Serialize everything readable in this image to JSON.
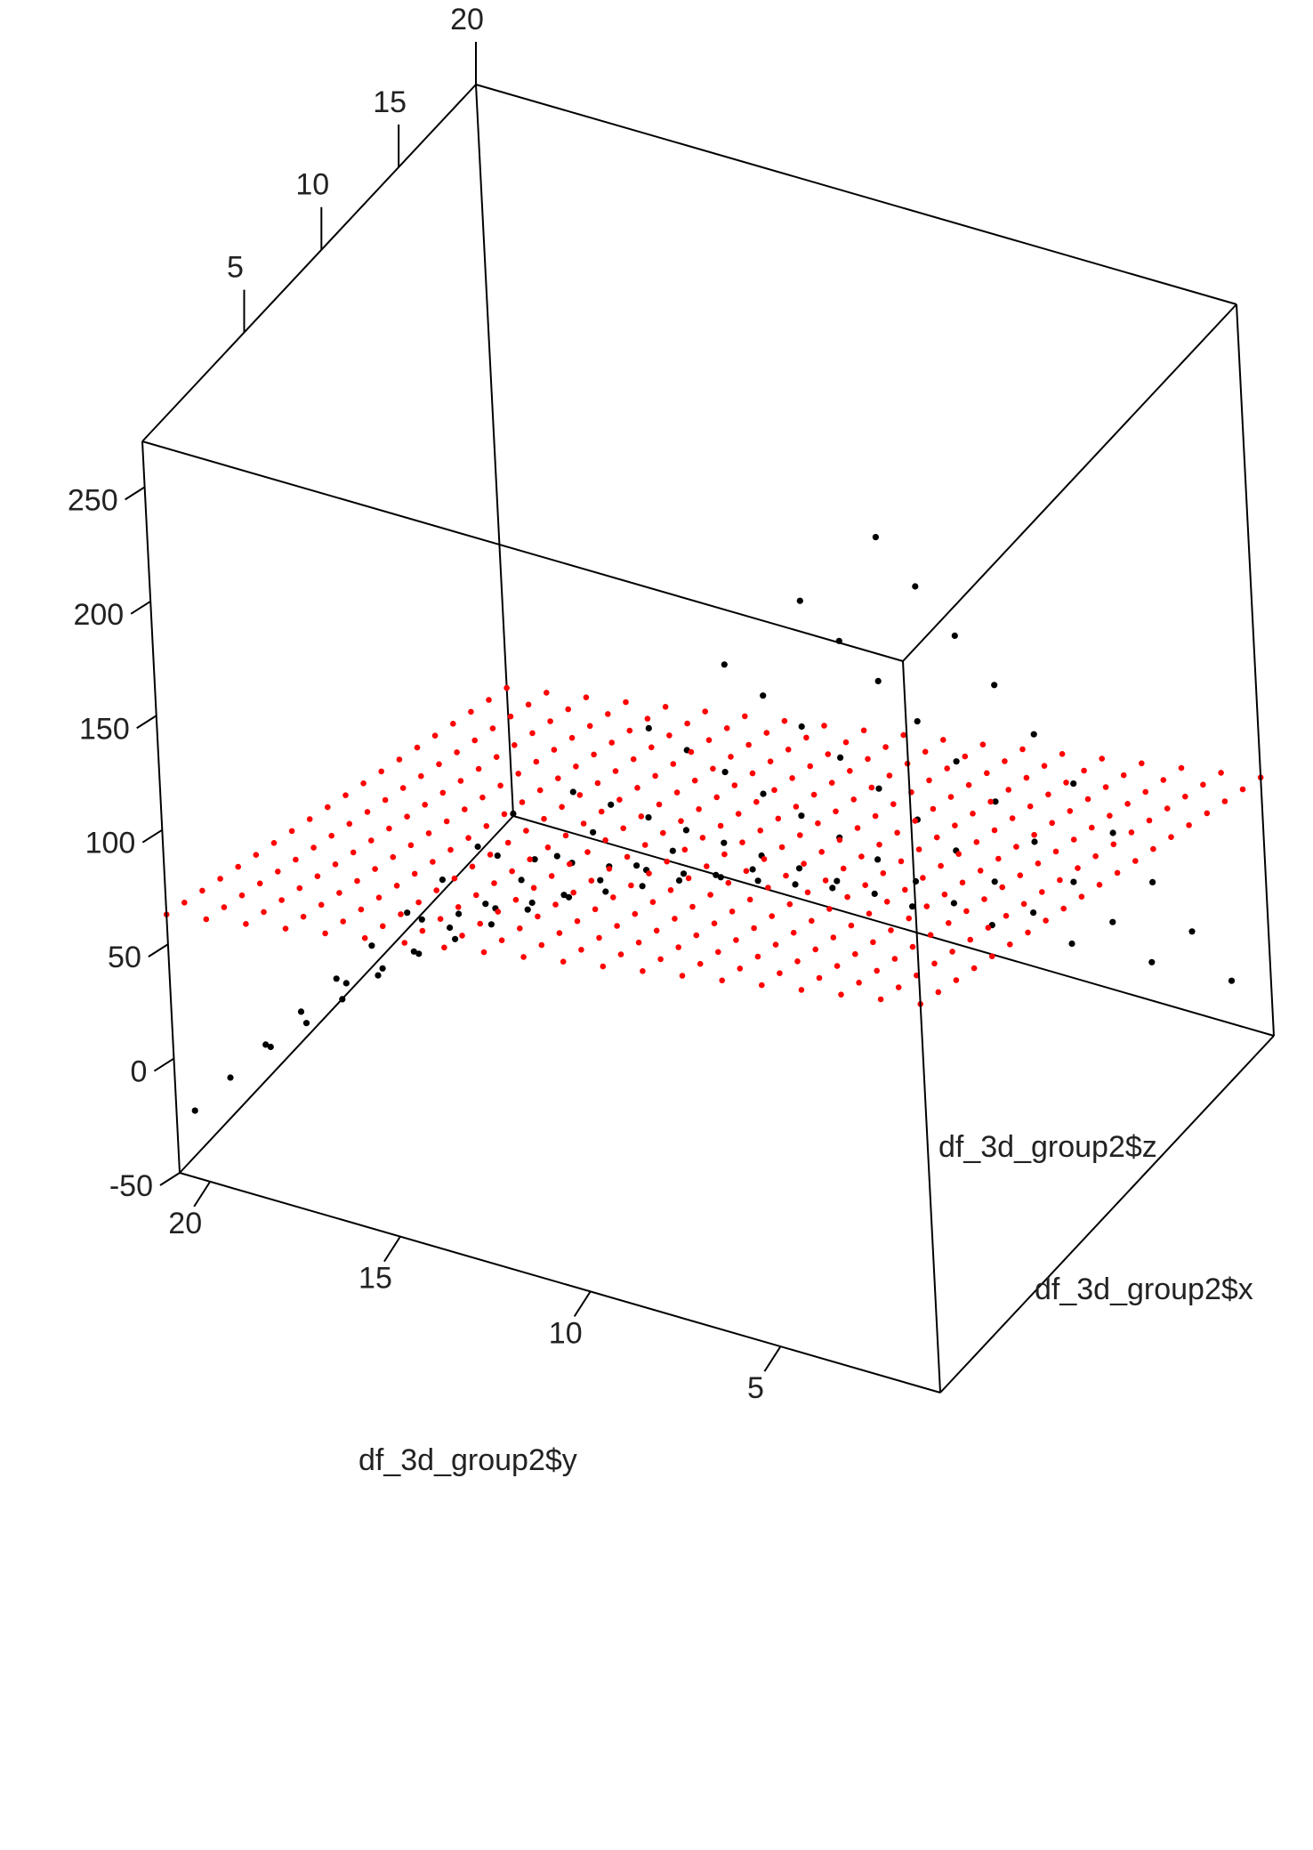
{
  "chart_data": {
    "type": "scatter",
    "subtype": "3d-scatter",
    "title": "",
    "axes": {
      "x": {
        "label": "df_3d_group2$x",
        "range": [
          1,
          20
        ],
        "ticks": []
      },
      "y": {
        "label": "df_3d_group2$y",
        "range": [
          1,
          20
        ],
        "ticks": [
          "5",
          "10",
          "15",
          "20"
        ]
      },
      "z": {
        "label": "df_3d_group2$z",
        "range": [
          -50,
          270
        ],
        "ticks": [
          "-50",
          "0",
          "50",
          "100",
          "150",
          "200",
          "250"
        ]
      },
      "depth_ticks": [
        "5",
        "10",
        "15",
        "20"
      ]
    },
    "grid": false,
    "legend": "none",
    "series": [
      {
        "color": "#000000",
        "formula": "z = x * y - 50",
        "x": [
          1,
          3,
          5,
          7,
          9,
          11,
          13,
          15,
          17,
          19
        ],
        "y": [
          1,
          3,
          5,
          7,
          9,
          11,
          13,
          15,
          17,
          19
        ]
      },
      {
        "color": "#ff0000",
        "formula": "z = 3 * (x + y)",
        "x": [
          1,
          2,
          3,
          4,
          5,
          6,
          7,
          8,
          9,
          10,
          11,
          12,
          13,
          14,
          15,
          16,
          17,
          18,
          19,
          20
        ],
        "y": [
          1,
          2,
          3,
          4,
          5,
          6,
          7,
          8,
          9,
          10,
          11,
          12,
          13,
          14,
          15,
          16,
          17,
          18,
          19,
          20
        ]
      }
    ]
  }
}
